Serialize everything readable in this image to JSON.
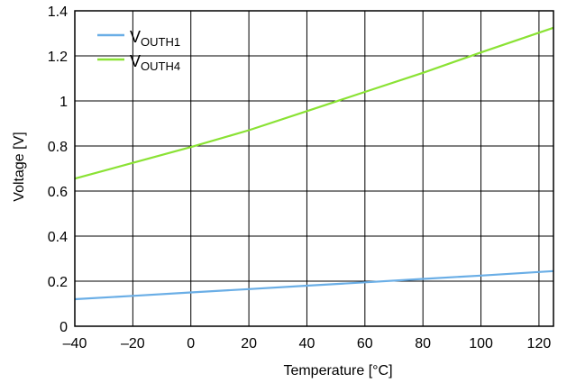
{
  "chart_data": {
    "type": "line",
    "xlabel": "Temperature [°C]",
    "ylabel": "Voltage [V]",
    "xlim": [
      -40,
      125
    ],
    "ylim": [
      0,
      1.4
    ],
    "xticks": [
      -40,
      -20,
      0,
      20,
      40,
      60,
      80,
      100,
      120
    ],
    "xtick_labels": [
      "–40",
      "–20",
      "0",
      "20",
      "40",
      "60",
      "80",
      "100",
      "120"
    ],
    "yticks": [
      0,
      0.2,
      0.4,
      0.6,
      0.8,
      1,
      1.2,
      1.4
    ],
    "ytick_labels": [
      "0",
      "0.2",
      "0.4",
      "0.6",
      "0.8",
      "1",
      "1.2",
      "1.4"
    ],
    "grid": true,
    "legend_position": "top-left",
    "series": [
      {
        "name": "VOUTH1",
        "legend_main": "V",
        "legend_sub": "OUTH1",
        "color": "#6aaee6",
        "x": [
          -40,
          -20,
          0,
          20,
          40,
          60,
          80,
          100,
          125
        ],
        "y": [
          0.12,
          0.135,
          0.15,
          0.165,
          0.18,
          0.195,
          0.21,
          0.225,
          0.245
        ]
      },
      {
        "name": "VOUTH4",
        "legend_main": "V",
        "legend_sub": "OUTH4",
        "color": "#8ae234",
        "x": [
          -40,
          -20,
          0,
          20,
          40,
          60,
          80,
          100,
          125
        ],
        "y": [
          0.655,
          0.725,
          0.795,
          0.87,
          0.955,
          1.04,
          1.125,
          1.215,
          1.325
        ]
      }
    ]
  }
}
